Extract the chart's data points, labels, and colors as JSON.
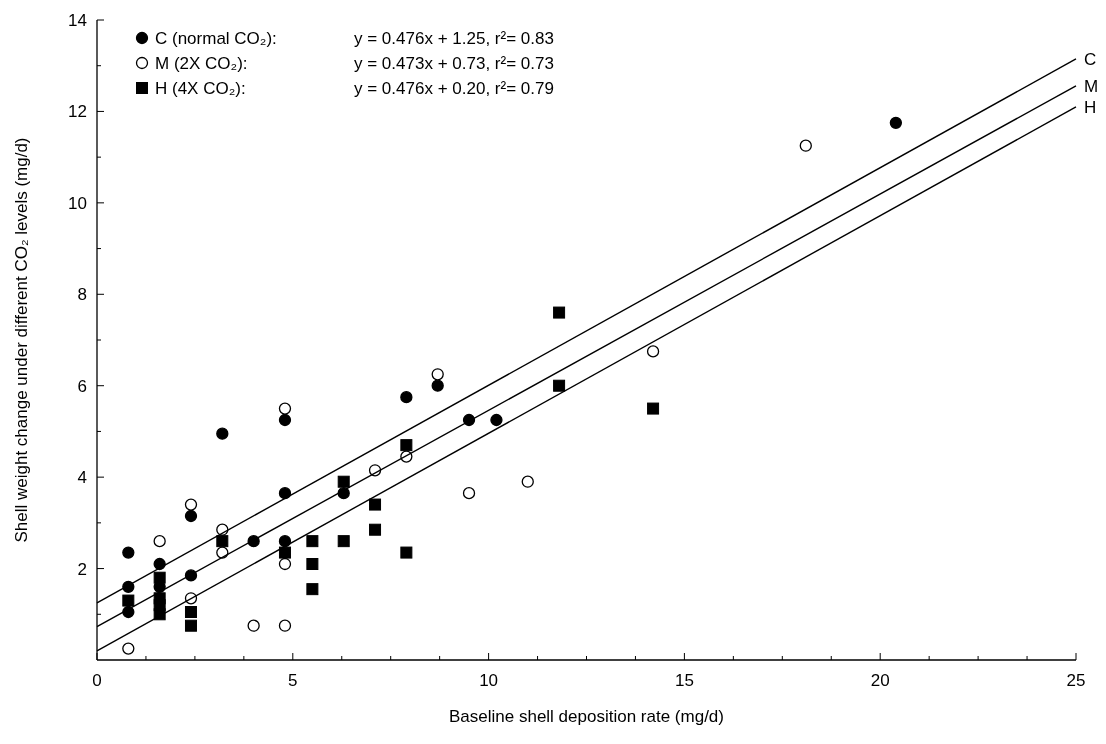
{
  "chart_data": {
    "type": "scatter",
    "xlabel": "Baseline shell deposition rate (mg/d)",
    "ylabel": "Shell weight change under different CO₂ levels (mg/d)",
    "xlim": [
      0,
      25
    ],
    "xticks": [
      0,
      {
        "value": 1.25,
        "label": null
      },
      {
        "value": 2.5,
        "label": null
      },
      {
        "value": 3.75,
        "label": null
      },
      5,
      {
        "value": 6.25,
        "label": null
      },
      {
        "value": 7.5,
        "label": null
      },
      {
        "value": 8.75,
        "label": null
      },
      10,
      {
        "value": 11.25,
        "label": null
      },
      {
        "value": 12.5,
        "label": null
      },
      {
        "value": 13.75,
        "label": null
      },
      15,
      {
        "value": 16.25,
        "label": null
      },
      {
        "value": 17.5,
        "label": null
      },
      {
        "value": 18.75,
        "label": null
      },
      20,
      {
        "value": 21.25,
        "label": null
      },
      {
        "value": 22.5,
        "label": null
      },
      {
        "value": 23.75,
        "label": null
      },
      25
    ],
    "ylim": [
      0,
      14
    ],
    "yticks": [
      {
        "value": 1,
        "label": null
      },
      2,
      {
        "value": 3,
        "label": null
      },
      4,
      {
        "value": 5,
        "label": null
      },
      6,
      {
        "value": 7,
        "label": null
      },
      8,
      {
        "value": 9,
        "label": null
      },
      10,
      {
        "value": 11,
        "label": null
      },
      12,
      {
        "value": 13,
        "label": null
      },
      14
    ],
    "grid": false,
    "legend": "top left",
    "annotations": [
      "y = 0.476x + 1.25, r²= 0.83",
      "y = 0.473x + 0.73, r²= 0.73",
      "y = 0.476x + 0.20, r²= 0.79"
    ],
    "series": [
      {
        "name": "C (normal CO₂):",
        "marker": "circle",
        "color": "#000000",
        "x": [
          0.8,
          0.8,
          0.8,
          1.6,
          1.6,
          2.4,
          2.4,
          3.2,
          4.0,
          4.8,
          4.8,
          4.8,
          6.3,
          7.9,
          8.7,
          9.5,
          10.2,
          20.4
        ],
        "values": [
          2.35,
          1.6,
          1.05,
          2.1,
          1.6,
          3.15,
          1.85,
          4.95,
          2.6,
          5.25,
          3.65,
          2.6,
          3.65,
          5.75,
          6.0,
          5.25,
          5.25,
          11.75
        ]
      },
      {
        "name": "M (2X CO₂):",
        "marker": "circle",
        "color": "#ffffff",
        "x": [
          0.8,
          1.6,
          2.4,
          2.4,
          3.2,
          3.2,
          4.0,
          4.8,
          4.8,
          4.8,
          7.1,
          7.9,
          8.7,
          9.5,
          11.0,
          14.2,
          18.1
        ],
        "values": [
          0.25,
          2.6,
          3.4,
          1.35,
          2.85,
          2.35,
          0.75,
          5.5,
          2.1,
          0.75,
          4.15,
          4.45,
          6.25,
          3.65,
          3.9,
          6.75,
          11.25
        ]
      },
      {
        "name": "H (4X CO₂):",
        "marker": "square",
        "color": "#000000",
        "x": [
          0.8,
          1.6,
          1.6,
          1.6,
          1.6,
          2.4,
          2.4,
          3.2,
          4.8,
          5.5,
          5.5,
          5.5,
          6.3,
          6.3,
          7.1,
          7.1,
          7.9,
          7.9,
          11.8,
          11.8,
          14.2
        ],
        "values": [
          1.3,
          1.8,
          1.35,
          1.2,
          1.0,
          1.05,
          0.75,
          2.6,
          2.35,
          2.6,
          2.1,
          1.55,
          3.9,
          2.6,
          3.4,
          2.85,
          4.7,
          2.35,
          7.6,
          6.0,
          5.5
        ]
      },
      {
        "name": "C",
        "type": "line",
        "color": "#000000",
        "x": [
          0,
          25
        ],
        "values": [
          1.25,
          13.15
        ]
      },
      {
        "name": "M",
        "type": "line",
        "color": "#000000",
        "x": [
          0,
          25
        ],
        "values": [
          0.73,
          12.56
        ]
      },
      {
        "name": "H",
        "type": "line",
        "color": "#000000",
        "x": [
          0,
          25
        ],
        "values": [
          0.2,
          12.1
        ]
      }
    ]
  }
}
